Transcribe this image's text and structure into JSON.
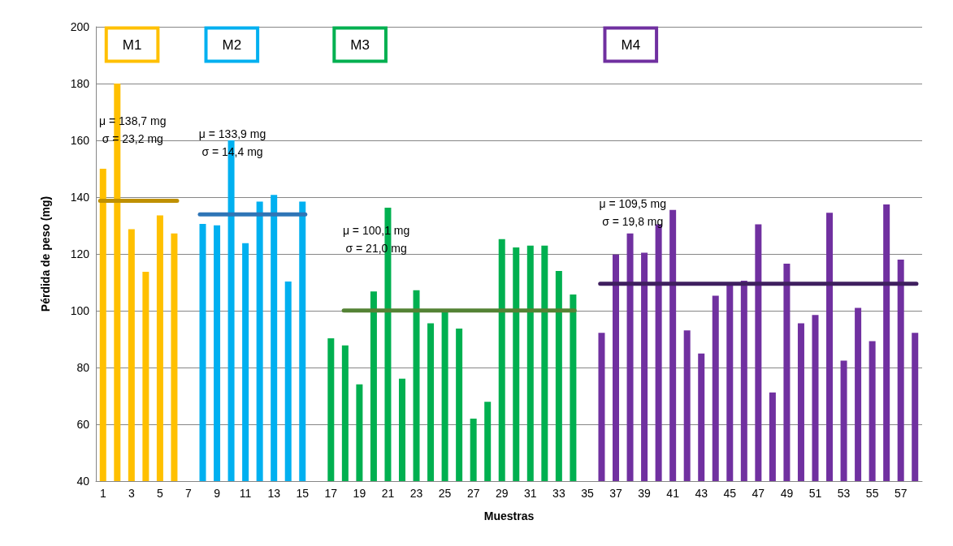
{
  "chart_data": {
    "type": "bar",
    "xlabel": "Muestras",
    "ylabel": "Pérdida de peso (mg)",
    "xlim": [
      0.5,
      58.5
    ],
    "xticks": [
      1,
      3,
      5,
      7,
      9,
      11,
      13,
      15,
      17,
      19,
      21,
      23,
      25,
      27,
      29,
      31,
      33,
      35,
      37,
      39,
      41,
      43,
      45,
      47,
      49,
      51,
      53,
      55,
      57
    ],
    "ylim": [
      40,
      200
    ],
    "yticks": [
      40,
      60,
      80,
      100,
      120,
      140,
      160,
      180,
      200
    ],
    "grid": "y",
    "series": [
      {
        "name": "M1",
        "color": "#ffc000",
        "x": [
          1,
          2,
          3,
          4,
          5,
          6
        ],
        "values": [
          150,
          180,
          128.7,
          113.7,
          133.6,
          127.2
        ]
      },
      {
        "name": "M2",
        "color": "#00b0f0",
        "x": [
          8,
          9,
          10,
          11,
          12,
          13,
          14,
          15
        ],
        "values": [
          130.6,
          130.1,
          160,
          123.8,
          138.4,
          140.8,
          110.3,
          138.4
        ]
      },
      {
        "name": "M3",
        "color": "#00b050",
        "x": [
          17,
          18,
          19,
          20,
          21,
          22,
          23,
          24,
          25,
          26,
          27,
          28,
          29,
          30,
          31,
          32,
          33,
          34
        ],
        "values": [
          90.3,
          87.8,
          74.1,
          106.8,
          136.3,
          76.1,
          107.2,
          95.6,
          100,
          93.7,
          62,
          67.9,
          125.2,
          122.3,
          122.9,
          122.9,
          114,
          105.7
        ]
      },
      {
        "name": "M4",
        "color": "#7030a0",
        "x": [
          36,
          37,
          38,
          39,
          40,
          41,
          42,
          43,
          44,
          45,
          46,
          47,
          48,
          49,
          50,
          51,
          52,
          53,
          54,
          55,
          56,
          57,
          58
        ],
        "values": [
          92.2,
          119.8,
          127.2,
          120.4,
          130.4,
          135.5,
          93.1,
          84.9,
          105.3,
          109.7,
          110.6,
          130.4,
          71.2,
          116.6,
          95.6,
          98.5,
          134.5,
          82.4,
          101,
          89.3,
          137.4,
          118,
          92.2
        ]
      },
      {
        "type": "line",
        "color": "#bf9000",
        "x": [
          0.8,
          6.2
        ],
        "values": [
          138.7,
          138.7
        ]
      },
      {
        "type": "line",
        "color": "#2e75b6",
        "x": [
          7.8,
          15.2
        ],
        "values": [
          133.9,
          133.9
        ]
      },
      {
        "type": "line",
        "color": "#548235",
        "x": [
          17.9,
          34.1
        ],
        "values": [
          100.1,
          100.1
        ]
      },
      {
        "type": "line",
        "color": "#3f1f5f",
        "x": [
          35.9,
          58.1
        ],
        "values": [
          109.5,
          109.5
        ]
      }
    ],
    "annotations": [
      "μ = 138,7 mg\nσ = 23,2 mg",
      "μ = 133,9 mg\nσ = 14,4 mg",
      "μ = 100,1 mg\nσ = 21,0 mg",
      "μ = 109,5 mg\nσ = 19,8 mg"
    ],
    "marker": "none",
    "line_style": "solid"
  }
}
